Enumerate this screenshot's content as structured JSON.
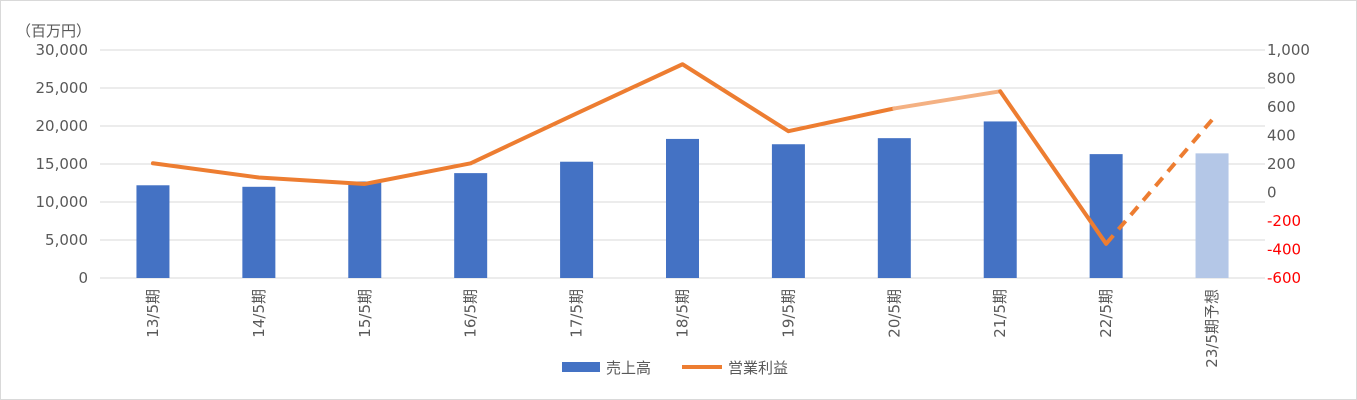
{
  "chart_data": {
    "type": "bar+line",
    "unit_label": "（百万円）",
    "categories": [
      "13/5期",
      "14/5期",
      "15/5期",
      "16/5期",
      "17/5期",
      "18/5期",
      "19/5期",
      "20/5期",
      "21/5期",
      "22/5期",
      "23/5期予想"
    ],
    "series": [
      {
        "name": "売上高",
        "type": "bar",
        "axis": "left",
        "color": "#4472c4",
        "forecast_color": "#b4c7e7",
        "values": [
          12200,
          12000,
          12700,
          13800,
          15300,
          18300,
          17600,
          18400,
          20600,
          16300,
          16400
        ]
      },
      {
        "name": "営業利益",
        "type": "line",
        "axis": "right",
        "color": "#ed7d31",
        "light_color": "#f4b183",
        "values": [
          205,
          105,
          60,
          205,
          555,
          900,
          430,
          590,
          710,
          -360,
          510
        ]
      }
    ],
    "left_axis": {
      "min": 0,
      "max": 30000,
      "step": 5000,
      "ticks": [
        "0",
        "5,000",
        "10,000",
        "15,000",
        "20,000",
        "25,000",
        "30,000"
      ]
    },
    "right_axis": {
      "min": -600,
      "max": 1000,
      "step": 200,
      "ticks": [
        "-600",
        "-400",
        "-200",
        "0",
        "200",
        "400",
        "600",
        "800",
        "1,000"
      ],
      "negative_color": "#ff0000"
    },
    "grid": true,
    "legend_position": "bottom"
  }
}
